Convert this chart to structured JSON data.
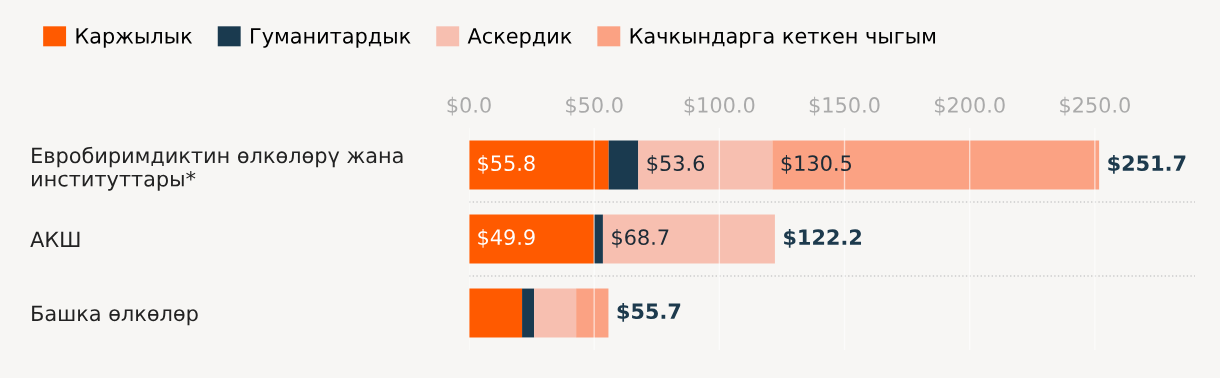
{
  "chart_data": {
    "type": "bar",
    "orientation": "horizontal",
    "stacked": true,
    "categories": [
      "Евробиримдиктин өлкөлөрү жана\nинституттары*",
      "АКШ",
      "Башка өлкөлөр"
    ],
    "series": [
      {
        "name": "Каржылык",
        "color": "#ff5a00",
        "values": [
          55.8,
          49.9,
          21.2
        ],
        "value_labels": [
          "$55.8",
          "$49.9",
          null
        ]
      },
      {
        "name": "Гуманитардык",
        "color": "#1a3a4f",
        "values": [
          11.8,
          3.6,
          4.8
        ]
      },
      {
        "name": "Аскердик",
        "color": "#f7bfb0",
        "values": [
          53.6,
          68.7,
          16.8
        ],
        "value_labels": [
          "$53.6",
          "$68.7",
          null
        ]
      },
      {
        "name": "Качкындарга кеткен чыгым",
        "color": "#fba283",
        "values": [
          130.5,
          0,
          12.9
        ],
        "value_labels": [
          "$130.5",
          null,
          null
        ]
      }
    ],
    "totals": [
      "$251.7",
      "$122.2",
      "$55.7"
    ],
    "xlim": [
      0,
      290
    ],
    "xticks": [
      {
        "value": 0,
        "label": "$0.0"
      },
      {
        "value": 50,
        "label": "$50.0"
      },
      {
        "value": 100,
        "label": "$100.0"
      },
      {
        "value": 150,
        "label": "$150.0"
      },
      {
        "value": 200,
        "label": "$200.0"
      },
      {
        "value": 250,
        "label": "$250.0"
      }
    ],
    "grid": "x",
    "legend": "top left"
  }
}
